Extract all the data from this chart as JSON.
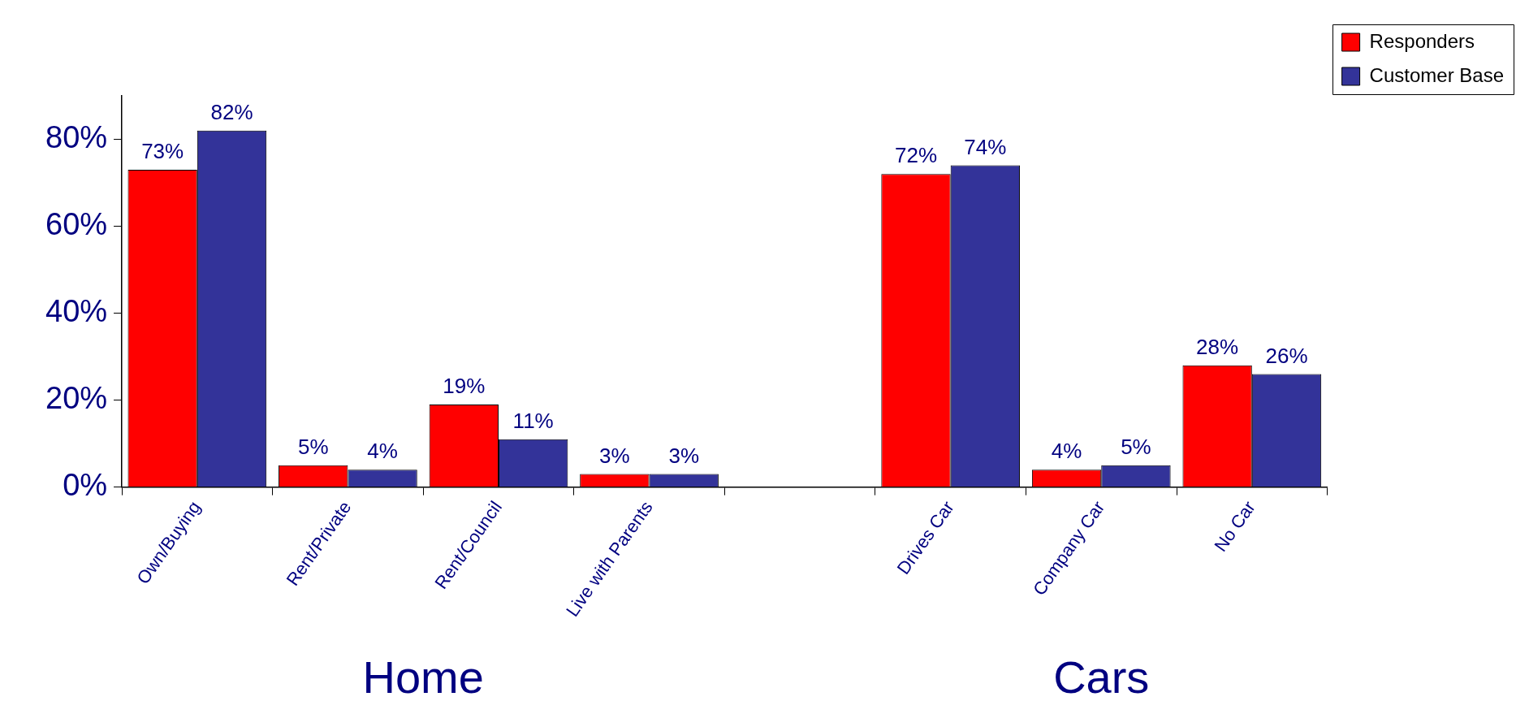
{
  "chart_data": {
    "type": "bar",
    "categories": [
      "Own/Buying",
      "Rent/Private",
      "Rent/Council",
      "Live with Parents",
      null,
      "Drives Car",
      "Company Car",
      "No Car"
    ],
    "series": [
      {
        "name": "Responders",
        "color": "#ff0000",
        "values": [
          73,
          5,
          19,
          3,
          null,
          72,
          4,
          28
        ],
        "value_labels": [
          "73%",
          "5%",
          "19%",
          "3%",
          null,
          "72%",
          "4%",
          "28%"
        ]
      },
      {
        "name": "Customer Base",
        "color": "#333399",
        "values": [
          82,
          4,
          11,
          3,
          null,
          74,
          5,
          26
        ],
        "value_labels": [
          "82%",
          "4%",
          "11%",
          "3%",
          null,
          "74%",
          "5%",
          "26%"
        ]
      }
    ],
    "ylim": [
      0,
      90
    ],
    "yticks": [
      {
        "value": 0,
        "label": "0%"
      },
      {
        "value": 20,
        "label": "20%"
      },
      {
        "value": 40,
        "label": "40%"
      },
      {
        "value": 60,
        "label": "60%"
      },
      {
        "value": 80,
        "label": "80%"
      }
    ],
    "grid": false,
    "legend": "top right",
    "annotations": [
      "Home",
      "Cars"
    ]
  }
}
